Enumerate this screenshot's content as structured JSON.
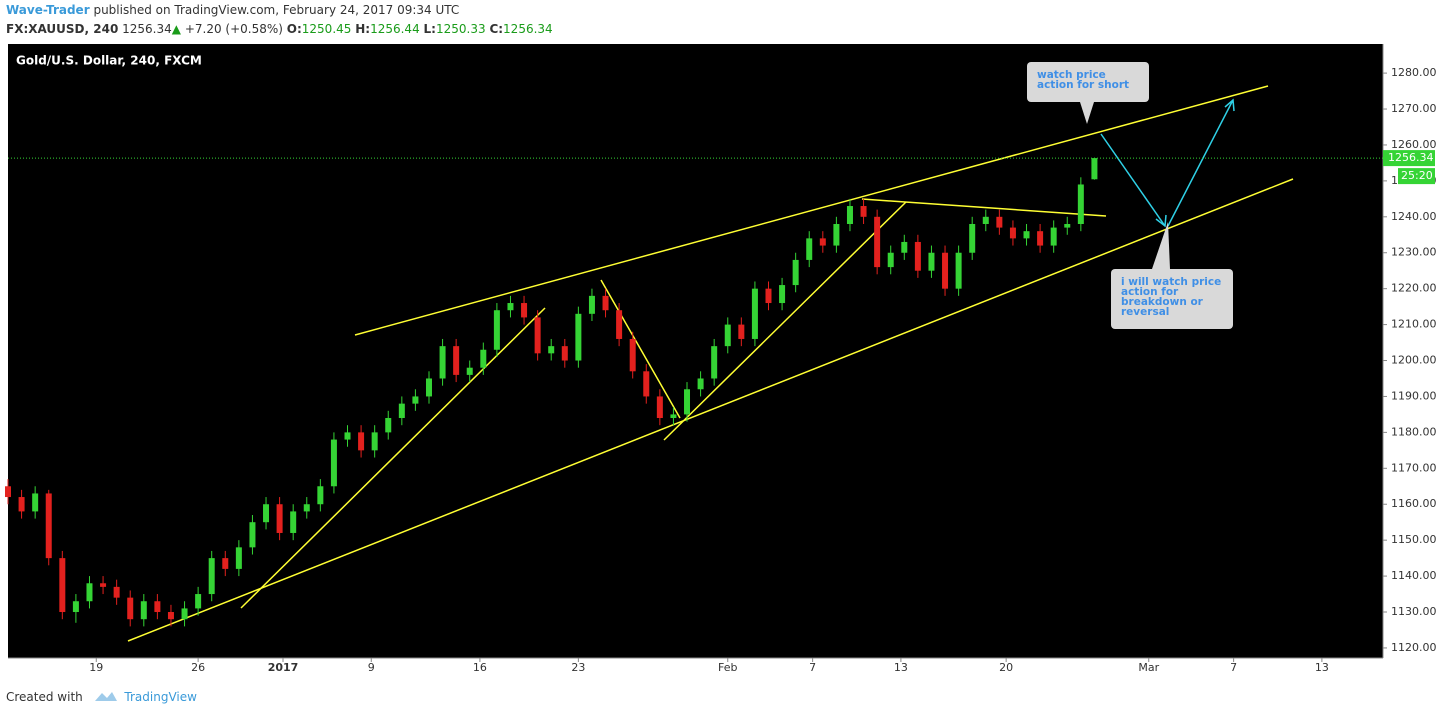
{
  "header": {
    "author": "Wave-Trader",
    "published": "published on TradingView.com, February 24, 2017 09:34 UTC",
    "symbol": "FX:XAUUSD, 240",
    "last": "1256.34",
    "change": "+7.20 (+0.58%)",
    "ohlc": [
      {
        "label": "O:",
        "value": "1250.45"
      },
      {
        "label": "H:",
        "value": "1256.44"
      },
      {
        "label": "L:",
        "value": "1250.33"
      },
      {
        "label": "C:",
        "value": "1256.34"
      }
    ]
  },
  "chart_data": {
    "type": "candlestick",
    "title": "Gold/U.S. Dollar, 240, FXCM",
    "x": [
      0,
      4,
      8,
      12,
      16,
      20,
      24,
      28,
      32,
      36,
      40,
      44,
      48,
      52,
      56,
      60,
      64,
      68,
      72,
      76,
      80,
      84,
      88,
      92,
      96,
      100,
      104,
      108,
      112,
      116,
      120,
      124,
      128,
      132,
      136,
      140,
      144,
      148,
      152,
      156,
      160,
      164,
      168,
      172,
      176,
      180,
      184,
      188,
      192,
      196,
      200,
      204,
      208,
      212,
      216,
      220,
      224,
      228,
      232,
      236,
      240,
      244,
      248,
      252,
      256,
      260,
      264,
      268,
      272,
      276,
      280,
      284,
      288,
      292,
      296,
      300,
      304,
      308,
      312,
      316,
      320
    ],
    "close": [
      1162,
      1158,
      1163,
      1145,
      1130,
      1133,
      1138,
      1137,
      1134,
      1128,
      1133,
      1130,
      1128,
      1131,
      1135,
      1145,
      1142,
      1148,
      1155,
      1160,
      1152,
      1158,
      1160,
      1165,
      1178,
      1180,
      1175,
      1180,
      1184,
      1188,
      1190,
      1195,
      1204,
      1196,
      1198,
      1203,
      1214,
      1216,
      1212,
      1202,
      1204,
      1200,
      1213,
      1218,
      1214,
      1206,
      1197,
      1190,
      1184,
      1185,
      1192,
      1195,
      1204,
      1210,
      1206,
      1220,
      1216,
      1221,
      1228,
      1234,
      1232,
      1238,
      1243,
      1240,
      1226,
      1230,
      1233,
      1225,
      1230,
      1220,
      1230,
      1238,
      1240,
      1237,
      1234,
      1236,
      1232,
      1237,
      1238,
      1249,
      1256.34
    ],
    "open": [
      1165,
      1162,
      1158,
      1163,
      1145,
      1130,
      1133,
      1138,
      1137,
      1134,
      1128,
      1133,
      1130,
      1128,
      1131,
      1135,
      1145,
      1142,
      1148,
      1155,
      1160,
      1152,
      1158,
      1160,
      1165,
      1178,
      1180,
      1175,
      1180,
      1184,
      1188,
      1190,
      1195,
      1204,
      1196,
      1198,
      1203,
      1214,
      1216,
      1212,
      1202,
      1204,
      1200,
      1213,
      1218,
      1214,
      1206,
      1197,
      1190,
      1184,
      1185,
      1192,
      1195,
      1204,
      1210,
      1206,
      1220,
      1216,
      1221,
      1228,
      1234,
      1232,
      1238,
      1243,
      1240,
      1226,
      1230,
      1233,
      1225,
      1230,
      1220,
      1230,
      1238,
      1240,
      1237,
      1234,
      1236,
      1232,
      1237,
      1238,
      1250.45
    ],
    "high": [
      1167,
      1164,
      1165,
      1164,
      1147,
      1135,
      1140,
      1140,
      1139,
      1136,
      1135,
      1135,
      1132,
      1133,
      1137,
      1147,
      1147,
      1150,
      1157,
      1162,
      1162,
      1160,
      1162,
      1167,
      1180,
      1182,
      1182,
      1182,
      1186,
      1190,
      1192,
      1197,
      1206,
      1206,
      1200,
      1205,
      1216,
      1218,
      1218,
      1214,
      1206,
      1206,
      1215,
      1220,
      1220,
      1216,
      1208,
      1199,
      1192,
      1187,
      1194,
      1197,
      1206,
      1212,
      1212,
      1222,
      1222,
      1223,
      1230,
      1236,
      1236,
      1240,
      1245,
      1245,
      1242,
      1232,
      1235,
      1235,
      1232,
      1232,
      1232,
      1240,
      1242,
      1242,
      1239,
      1238,
      1238,
      1239,
      1240,
      1251,
      1256.44
    ],
    "low": [
      1160,
      1156,
      1156,
      1143,
      1128,
      1127,
      1131,
      1135,
      1132,
      1126,
      1126,
      1128,
      1126,
      1126,
      1129,
      1133,
      1140,
      1140,
      1146,
      1153,
      1150,
      1150,
      1156,
      1158,
      1163,
      1176,
      1173,
      1173,
      1178,
      1182,
      1186,
      1188,
      1193,
      1194,
      1194,
      1196,
      1201,
      1212,
      1210,
      1200,
      1200,
      1198,
      1198,
      1211,
      1212,
      1204,
      1195,
      1188,
      1182,
      1182,
      1183,
      1190,
      1193,
      1202,
      1204,
      1204,
      1214,
      1214,
      1219,
      1226,
      1230,
      1230,
      1236,
      1238,
      1224,
      1224,
      1228,
      1223,
      1223,
      1218,
      1218,
      1228,
      1236,
      1235,
      1232,
      1232,
      1230,
      1230,
      1235,
      1236,
      1250.33
    ],
    "up_color": "#35d435",
    "down_color": "#e3211e",
    "xlim": [
      0,
      405
    ],
    "xticks": [
      {
        "value": 26,
        "label": "19"
      },
      {
        "value": 56,
        "label": "26"
      },
      {
        "value": 81,
        "label": "2017"
      },
      {
        "value": 107,
        "label": "9"
      },
      {
        "value": 139,
        "label": "16"
      },
      {
        "value": 168,
        "label": "23"
      },
      {
        "value": 212,
        "label": "Feb"
      },
      {
        "value": 237,
        "label": "7"
      },
      {
        "value": 263,
        "label": "13"
      },
      {
        "value": 294,
        "label": "20"
      },
      {
        "value": 336,
        "label": "Mar"
      },
      {
        "value": 361,
        "label": "7"
      },
      {
        "value": 387,
        "label": "13"
      }
    ],
    "ylim": [
      1117.2,
      1288.1
    ],
    "yticks": [
      {
        "value": 1120,
        "label": "1120.00"
      },
      {
        "value": 1130,
        "label": "1130.00"
      },
      {
        "value": 1140,
        "label": "1140.00"
      },
      {
        "value": 1150,
        "label": "1150.00"
      },
      {
        "value": 1160,
        "label": "1160.00"
      },
      {
        "value": 1170,
        "label": "1170.00"
      },
      {
        "value": 1180,
        "label": "1180.00"
      },
      {
        "value": 1190,
        "label": "1190.00"
      },
      {
        "value": 1200,
        "label": "1200.00"
      },
      {
        "value": 1210,
        "label": "1210.00"
      },
      {
        "value": 1220,
        "label": "1220.00"
      },
      {
        "value": 1230,
        "label": "1230.00"
      },
      {
        "value": 1240,
        "label": "1240.00"
      },
      {
        "value": 1250,
        "label": "1250.00"
      },
      {
        "value": 1260,
        "label": "1260.00"
      },
      {
        "value": 1270,
        "label": "1270.00"
      },
      {
        "value": 1280,
        "label": "1280.00"
      }
    ],
    "last_price": {
      "value": 1256.34,
      "label": "1256.34",
      "timer": "25:20"
    },
    "annotations": [
      "watch price action for short",
      "i will watch price action for breakdown or reversal"
    ]
  },
  "footer": {
    "created": "Created with",
    "brand": "TradingView"
  }
}
